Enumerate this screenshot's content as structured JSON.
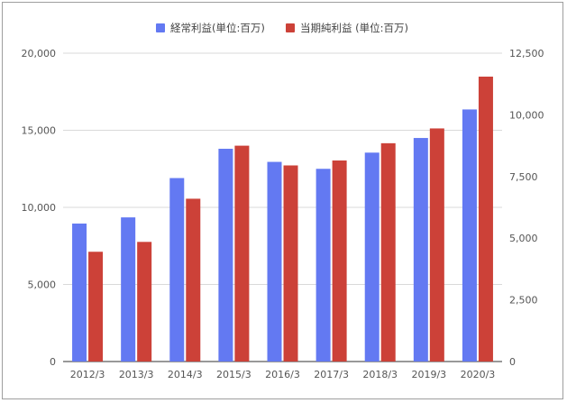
{
  "chart_data": {
    "type": "bar",
    "categories": [
      "2012/3",
      "2013/3",
      "2014/3",
      "2015/3",
      "2016/3",
      "2017/3",
      "2018/3",
      "2019/3",
      "2020/3"
    ],
    "series": [
      {
        "name": "経常利益(単位:百万)",
        "axis": "left",
        "color": "#6379f2",
        "values": [
          8950,
          9350,
          11900,
          13800,
          12950,
          12500,
          13550,
          14500,
          16350
        ]
      },
      {
        "name": "当期純利益 (単位:百万)",
        "axis": "right",
        "color": "#cc4138",
        "values": [
          4450,
          4850,
          6600,
          8750,
          7950,
          8150,
          8850,
          9450,
          11550
        ]
      }
    ],
    "y_left": {
      "min": 0,
      "max": 20000,
      "ticks": [
        "0",
        "5,000",
        "10,000",
        "15,000",
        "20,000"
      ]
    },
    "y_right": {
      "min": 0,
      "max": 12500,
      "ticks": [
        "0",
        "2,500",
        "5,000",
        "7,500",
        "10,000",
        "12,500"
      ]
    },
    "grid": true,
    "legend": "top-center"
  }
}
